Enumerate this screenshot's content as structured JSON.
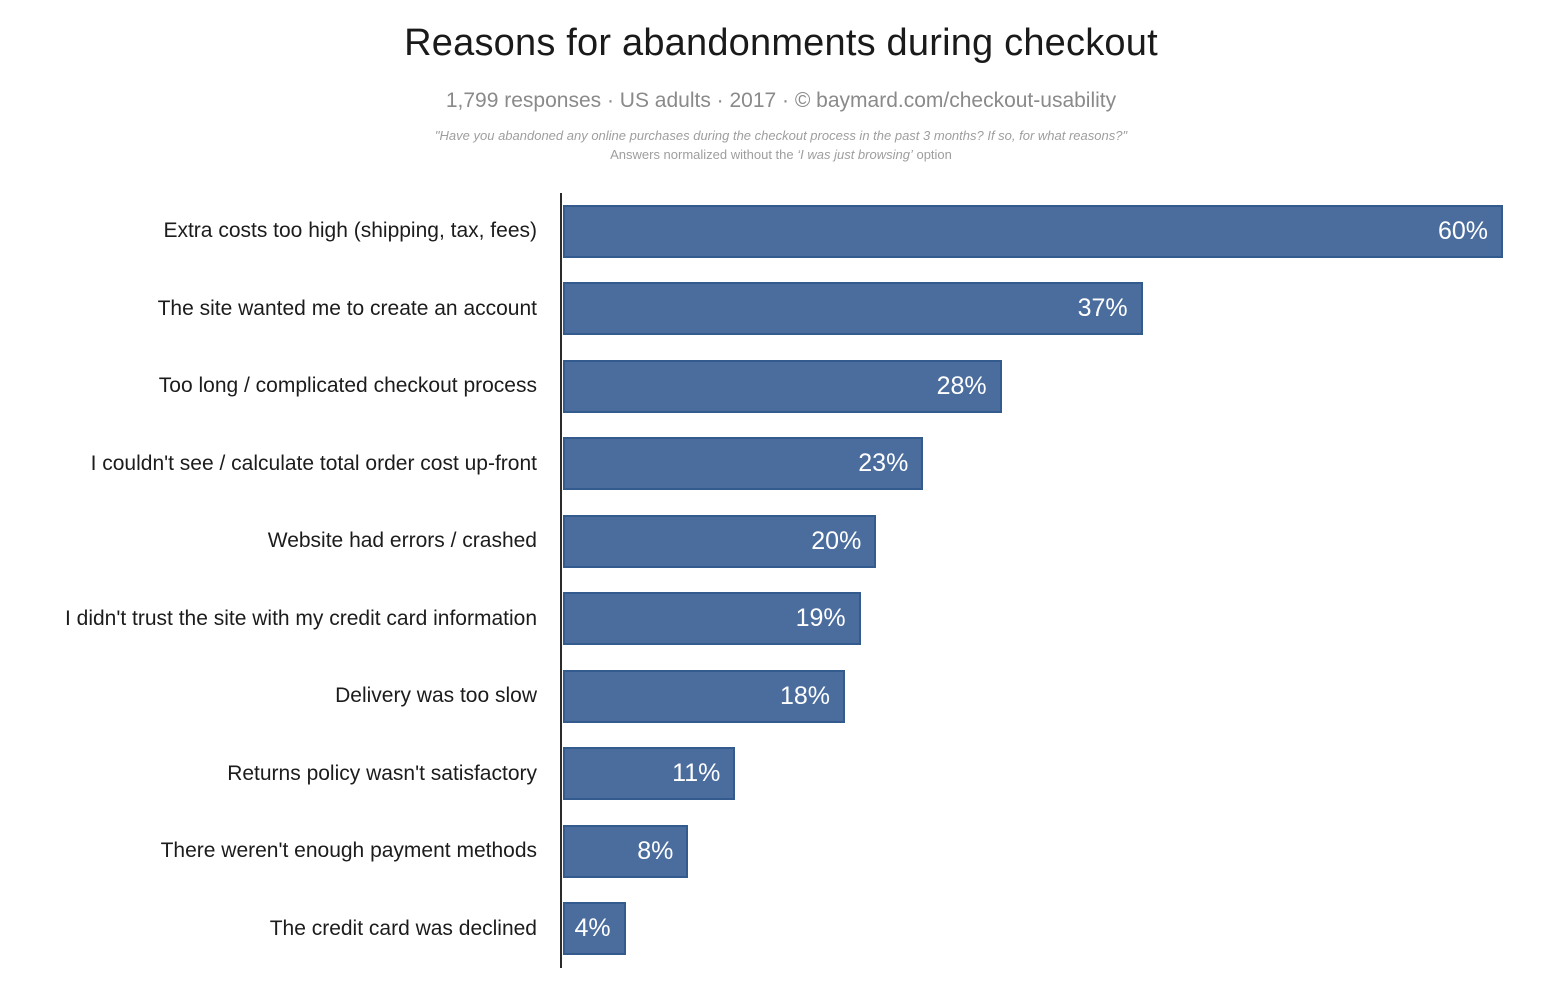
{
  "title": "Reasons for abandonments during checkout",
  "subtitle": "1,799 responses  ·  US adults  ·  2017  ·  ©  baymard.com/checkout-usability",
  "note": {
    "line1": "\"Have you abandoned any online purchases during the checkout process in the past 3 months? If so, for what reasons?\"",
    "line2_prefix": "Answers normalized without the ",
    "line2_italic": "‘I was just browsing’",
    "line2_suffix": " option"
  },
  "colors": {
    "bar_fill": "#4a6d9e",
    "bar_border": "#345b8d",
    "axis": "#2b2b2b",
    "title_text": "#1a1a1a",
    "subtitle_text": "#8a8a8a",
    "note_text": "#9e9e9e",
    "label_text": "#1c1c1c",
    "value_text": "#ffffff",
    "background": "#ffffff"
  },
  "chart_data": {
    "type": "bar",
    "orientation": "horizontal",
    "title": "Reasons for abandonments during checkout",
    "subtitle": "1,799 responses · US adults · 2017 · © baymard.com/checkout-usability",
    "categories": [
      "Extra costs too high (shipping, tax, fees)",
      "The site wanted me to create an account",
      "Too long / complicated checkout process",
      "I couldn't see / calculate total order cost up-front",
      "Website had errors / crashed",
      "I didn't trust the site with my credit card information",
      "Delivery was too slow",
      "Returns policy wasn't satisfactory",
      "There weren't enough payment methods",
      "The credit card was declined"
    ],
    "values": [
      60,
      37,
      28,
      23,
      20,
      19,
      18,
      11,
      8,
      4
    ],
    "value_labels": [
      "60%",
      "37%",
      "28%",
      "23%",
      "20%",
      "19%",
      "18%",
      "11%",
      "8%",
      "4%"
    ],
    "unit": "%",
    "xlim": [
      0,
      60
    ],
    "grid": false,
    "legend": false,
    "value_label_position": "inside-end",
    "bar_color": "#4a6d9e"
  }
}
